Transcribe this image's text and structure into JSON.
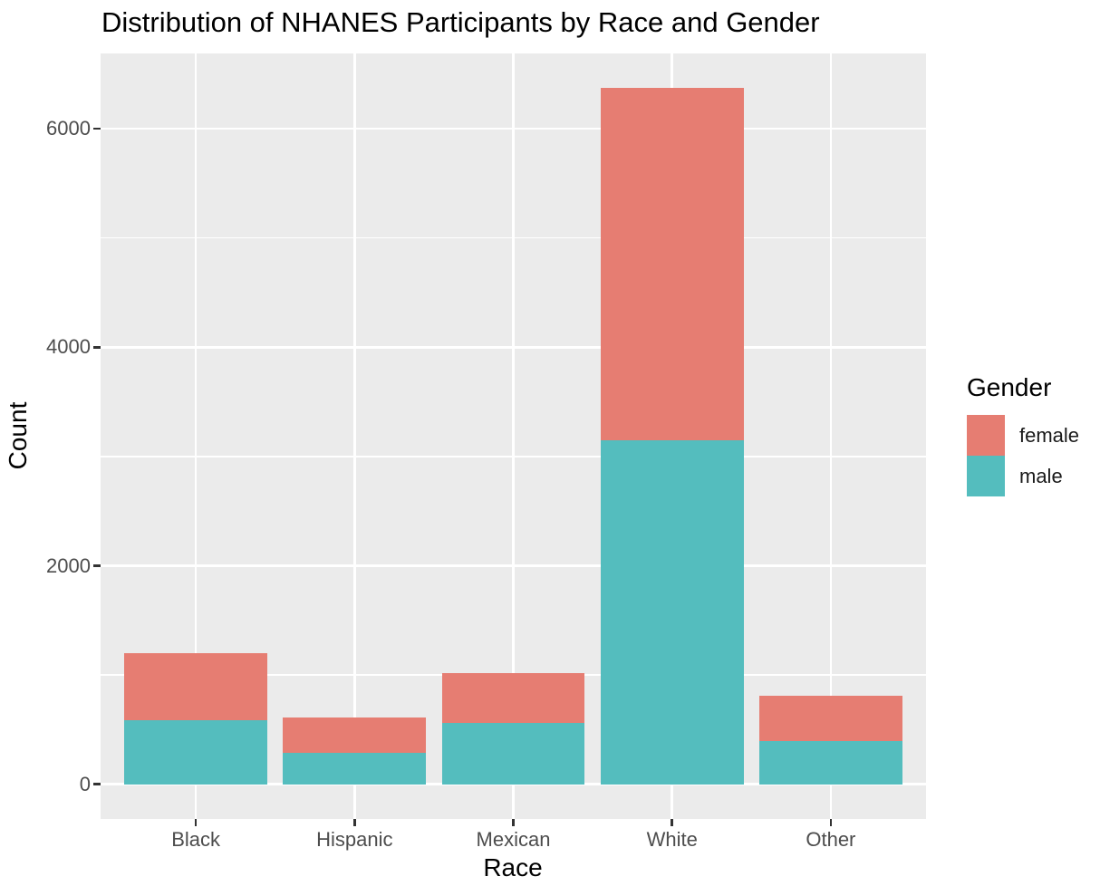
{
  "chart_data": {
    "type": "bar",
    "stacked": true,
    "title": "Distribution of NHANES Participants by Race and Gender",
    "xlabel": "Race",
    "ylabel": "Count",
    "categories": [
      "Black",
      "Hispanic",
      "Mexican",
      "White",
      "Other"
    ],
    "series": [
      {
        "name": "male",
        "color": "#54BDBE",
        "values": [
          585,
          290,
          565,
          3145,
          395
        ]
      },
      {
        "name": "female",
        "color": "#E67D72",
        "values": [
          612,
          320,
          450,
          3227,
          411
        ]
      }
    ],
    "y_ticks": [
      0,
      2000,
      4000,
      6000
    ],
    "y_minor_ticks": [
      1000,
      3000,
      5000
    ],
    "ylim": [
      -318,
      6690
    ],
    "grid": "on",
    "legend": {
      "title": "Gender",
      "position": "right",
      "items": [
        {
          "label": "female",
          "color": "#E67D72"
        },
        {
          "label": "male",
          "color": "#54BDBE"
        }
      ]
    },
    "colors": {
      "panel_background": "#EBEBEB",
      "gridline": "#FFFFFF",
      "tick_label": "#4D4D4D",
      "tick_mark": "#333333",
      "text": "#000000"
    }
  }
}
